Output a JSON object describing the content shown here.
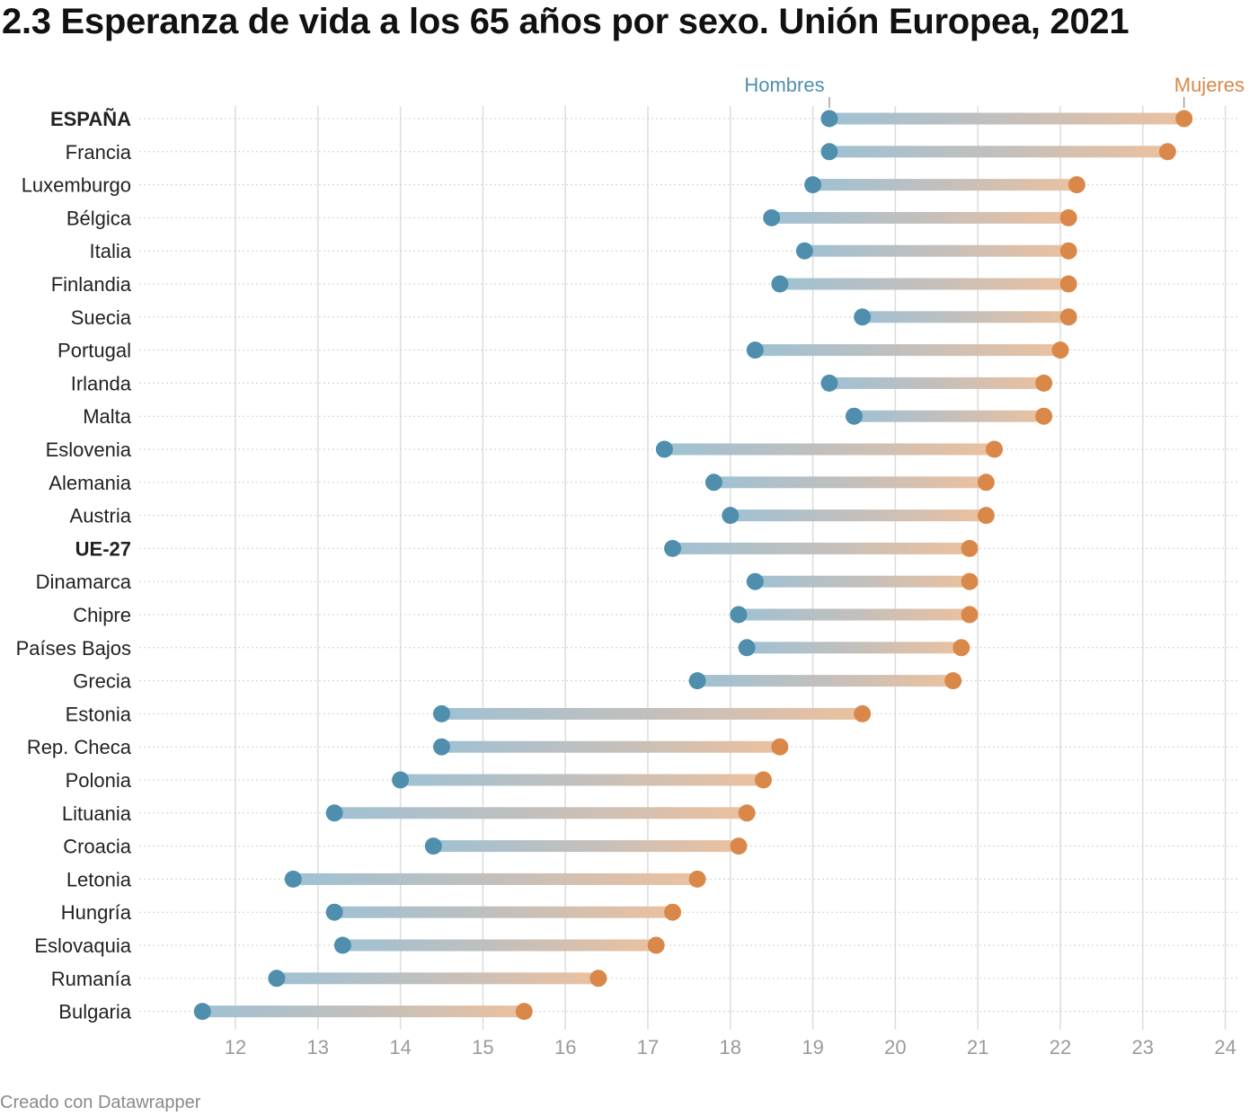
{
  "title": "2.3 Esperanza de vida a los 65 años por sexo. Unión Europea, 2021",
  "footer": "Creado con Datawrapper",
  "colors": {
    "men": "#4f8fad",
    "women": "#d9884a"
  },
  "chart_data": {
    "type": "dumbbell",
    "title": "2.3 Esperanza de vida a los 65 años por sexo. Unión Europea, 2021",
    "xlim": [
      11,
      24.2
    ],
    "x_ticks": [
      12,
      13,
      14,
      15,
      16,
      17,
      18,
      19,
      20,
      21,
      22,
      23,
      24
    ],
    "grid": true,
    "legend_position": "top, labels above first row",
    "series": [
      {
        "name": "Hombres",
        "key": "men"
      },
      {
        "name": "Mujeres",
        "key": "women"
      }
    ],
    "rows": [
      {
        "country": "ESPAÑA",
        "men": 19.2,
        "women": 23.5,
        "bold": true
      },
      {
        "country": "Francia",
        "men": 19.2,
        "women": 23.3
      },
      {
        "country": "Luxemburgo",
        "men": 19.0,
        "women": 22.2
      },
      {
        "country": "Bélgica",
        "men": 18.5,
        "women": 22.1
      },
      {
        "country": "Italia",
        "men": 18.9,
        "women": 22.1
      },
      {
        "country": "Finlandia",
        "men": 18.6,
        "women": 22.1
      },
      {
        "country": "Suecia",
        "men": 19.6,
        "women": 22.1
      },
      {
        "country": "Portugal",
        "men": 18.3,
        "women": 22.0
      },
      {
        "country": "Irlanda",
        "men": 19.2,
        "women": 21.8
      },
      {
        "country": "Malta",
        "men": 19.5,
        "women": 21.8
      },
      {
        "country": "Eslovenia",
        "men": 17.2,
        "women": 21.2
      },
      {
        "country": "Alemania",
        "men": 17.8,
        "women": 21.1
      },
      {
        "country": "Austria",
        "men": 18.0,
        "women": 21.1
      },
      {
        "country": "UE-27",
        "men": 17.3,
        "women": 20.9,
        "bold": true
      },
      {
        "country": "Dinamarca",
        "men": 18.3,
        "women": 20.9
      },
      {
        "country": "Chipre",
        "men": 18.1,
        "women": 20.9
      },
      {
        "country": "Países Bajos",
        "men": 18.2,
        "women": 20.8
      },
      {
        "country": "Grecia",
        "men": 17.6,
        "women": 20.7
      },
      {
        "country": "Estonia",
        "men": 14.5,
        "women": 19.6
      },
      {
        "country": "Rep. Checa",
        "men": 14.5,
        "women": 18.6
      },
      {
        "country": "Polonia",
        "men": 14.0,
        "women": 18.4
      },
      {
        "country": "Lituania",
        "men": 13.2,
        "women": 18.2
      },
      {
        "country": "Croacia",
        "men": 14.4,
        "women": 18.1
      },
      {
        "country": "Letonia",
        "men": 12.7,
        "women": 17.6
      },
      {
        "country": "Hungría",
        "men": 13.2,
        "women": 17.3
      },
      {
        "country": "Eslovaquia",
        "men": 13.3,
        "women": 17.1
      },
      {
        "country": "Rumanía",
        "men": 12.5,
        "women": 16.4
      },
      {
        "country": "Bulgaria",
        "men": 11.6,
        "women": 15.5
      }
    ]
  }
}
